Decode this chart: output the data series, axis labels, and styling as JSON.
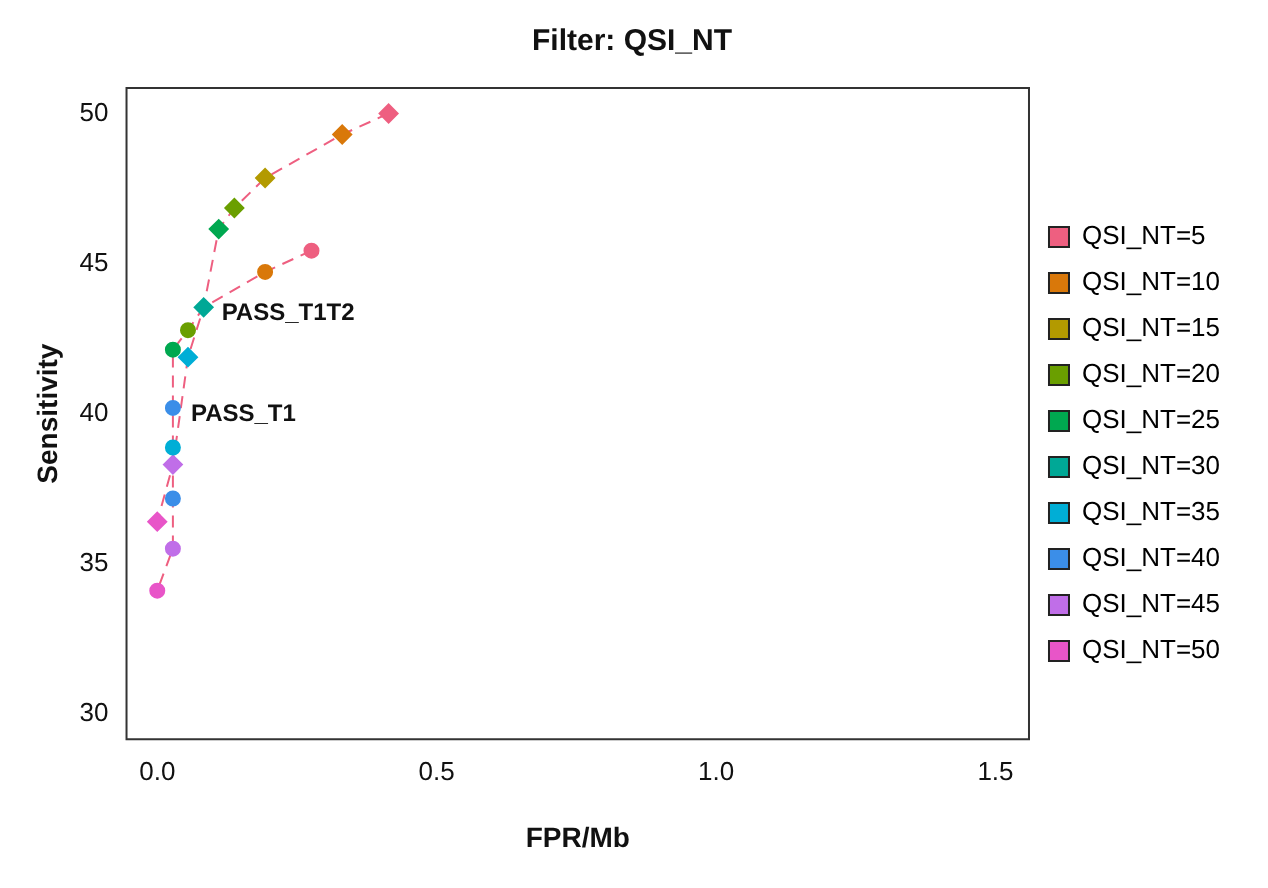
{
  "chart_data": {
    "type": "scatter",
    "title": "Filter: QSI_NT",
    "xlabel": "FPR/Mb",
    "ylabel": "Sensitivity",
    "xlim": [
      -0.055,
      1.56
    ],
    "xticks": [
      {
        "value": 0,
        "label": "0.0"
      },
      {
        "value": 0.5,
        "label": "0.5"
      },
      {
        "value": 1,
        "label": "1.0"
      },
      {
        "value": 1.5,
        "label": "1.5"
      }
    ],
    "ylim": [
      29.15,
      50.85
    ],
    "yticks": [
      30,
      35,
      40,
      45,
      50
    ],
    "grid": false,
    "legend": "right",
    "annotations": [
      {
        "text": "PASS_T1",
        "x": 0.028,
        "y": 40.19
      },
      {
        "text": "PASS_T1T2",
        "x": 0.083,
        "y": 43.54
      }
    ],
    "series": [
      {
        "type": "line",
        "color": "#ee5f80",
        "line_style": "dashed",
        "marker": "none",
        "x": [
          0.414,
          0.331,
          0.193,
          0.138,
          0.11,
          0.083,
          0.055,
          0.028,
          0.0
        ],
        "values": [
          50.0,
          49.3,
          47.85,
          46.85,
          46.15,
          43.54,
          41.88,
          38.3,
          36.4
        ]
      },
      {
        "type": "line",
        "color": "#ee5f80",
        "line_style": "dashed",
        "marker": "none",
        "x": [
          0.276,
          0.193,
          0.083,
          0.055,
          0.028,
          0.028,
          0.028,
          0.028,
          0.028,
          0.0
        ],
        "values": [
          45.43,
          44.72,
          43.54,
          42.78,
          42.13,
          40.19,
          38.87,
          37.17,
          35.5,
          34.1
        ]
      },
      {
        "name": "QSI_NT=5",
        "color": "#ee5f80",
        "marker": "circle",
        "x": [
          0.276
        ],
        "values": [
          45.43
        ]
      },
      {
        "color": "#ee5f80",
        "marker": "diamond",
        "x": [
          0.414
        ],
        "values": [
          50.0
        ]
      },
      {
        "name": "QSI_NT=10",
        "color": "#d9780a",
        "marker": "circle",
        "x": [
          0.193
        ],
        "values": [
          44.72
        ]
      },
      {
        "color": "#d9780a",
        "marker": "diamond",
        "x": [
          0.331
        ],
        "values": [
          49.3
        ]
      },
      {
        "name": "QSI_NT=15",
        "color": "#b39a00",
        "marker": "diamond",
        "x": [
          0.193
        ],
        "values": [
          47.85
        ]
      },
      {
        "name": "QSI_NT=20",
        "color": "#6a9f00",
        "marker": "circle",
        "x": [
          0.055
        ],
        "values": [
          42.78
        ]
      },
      {
        "color": "#6a9f00",
        "marker": "diamond",
        "x": [
          0.138
        ],
        "values": [
          46.85
        ]
      },
      {
        "name": "QSI_NT=25",
        "color": "#00a850",
        "marker": "circle",
        "x": [
          0.028
        ],
        "values": [
          42.13
        ]
      },
      {
        "color": "#00a850",
        "marker": "diamond",
        "x": [
          0.11
        ],
        "values": [
          46.15
        ]
      },
      {
        "name": "QSI_NT=30",
        "color": "#00a896",
        "marker": "diamond",
        "x": [
          0.083
        ],
        "values": [
          43.54
        ]
      },
      {
        "name": "QSI_NT=35",
        "color": "#00aed6",
        "marker": "circle",
        "x": [
          0.028
        ],
        "values": [
          38.87
        ]
      },
      {
        "color": "#00aed6",
        "marker": "diamond",
        "x": [
          0.055
        ],
        "values": [
          41.88
        ]
      },
      {
        "name": "QSI_NT=40",
        "color": "#3b8ee8",
        "marker": "circle",
        "x": [
          0.028
        ],
        "values": [
          37.17
        ]
      },
      {
        "color": "#3b8ee8",
        "marker": "circle",
        "x": [
          0.028
        ],
        "values": [
          40.19
        ]
      },
      {
        "name": "QSI_NT=45",
        "color": "#c06ee8",
        "marker": "circle",
        "x": [
          0.028
        ],
        "values": [
          35.5
        ]
      },
      {
        "color": "#c06ee8",
        "marker": "diamond",
        "x": [
          0.028
        ],
        "values": [
          38.3
        ]
      },
      {
        "name": "QSI_NT=50",
        "color": "#e855c8",
        "marker": "circle",
        "x": [
          0.0
        ],
        "values": [
          34.1
        ]
      },
      {
        "color": "#e855c8",
        "marker": "diamond",
        "x": [
          0.0
        ],
        "values": [
          36.4
        ]
      }
    ]
  }
}
